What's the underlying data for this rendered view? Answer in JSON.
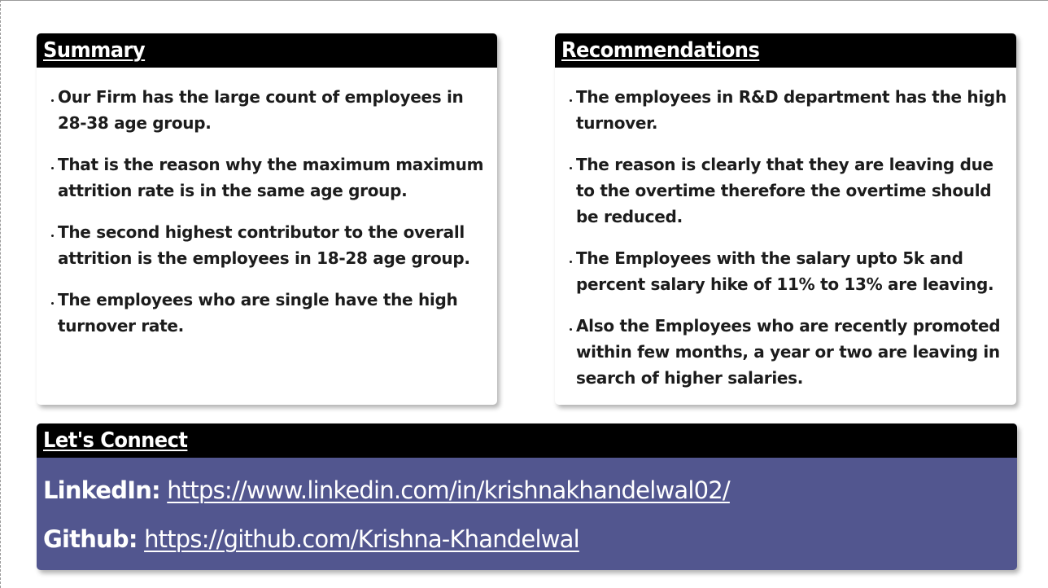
{
  "summary": {
    "title": "Summary",
    "items": [
      "Our Firm has the large count of employees in 28-38 age group.",
      "That is the reason why the maximum maximum attrition rate is in the same age group.",
      "The second highest contributor to the overall attrition is the employees in 18-28 age group.",
      "The employees who are single have the high turnover rate."
    ]
  },
  "recommendations": {
    "title": "Recommendations",
    "items": [
      "The employees in R&D department has the high turnover.",
      "The reason is clearly that they are leaving due to the overtime therefore the overtime should be reduced.",
      "The Employees with the salary upto 5k and percent salary hike of 11% to 13% are leaving.",
      "Also the Employees who are recently promoted within few months, a year or two are leaving in search of higher salaries."
    ]
  },
  "connect": {
    "title": "Let's Connect",
    "linkedin_label": "LinkedIn:",
    "linkedin_url": "https://www.linkedin.com/in/krishnakhandelwal02/",
    "github_label": "Github:",
    "github_url": "https://github.com/Krishna-Khandelwal"
  },
  "colors": {
    "header_bg": "#000000",
    "connect_bg": "#52568f",
    "card_bg": "#ffffff"
  }
}
